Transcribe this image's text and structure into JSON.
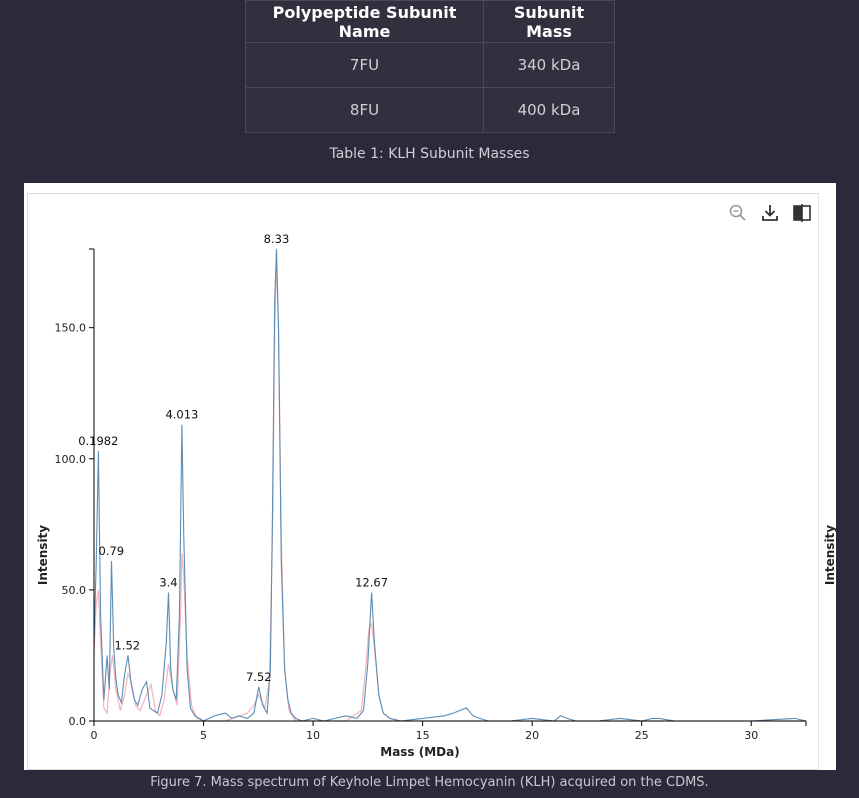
{
  "table": {
    "headers": [
      "Polypeptide Subunit Name",
      "Subunit Mass"
    ],
    "rows": [
      [
        "7FU",
        "340 kDa"
      ],
      [
        "8FU",
        "400 kDa"
      ]
    ],
    "caption": "Table 1: KLH Subunit Masses"
  },
  "toolbar": {
    "icons": [
      "zoom-icon",
      "download-icon",
      "compare-icon"
    ]
  },
  "chart_data": {
    "type": "line",
    "xlabel": "Mass (MDa)",
    "ylabel": "Intensity",
    "ylabel_right": "Intensity",
    "xlim": [
      0,
      32.5
    ],
    "ylim": [
      0,
      180
    ],
    "xticks": [
      0,
      5,
      10,
      15,
      20,
      25,
      30
    ],
    "yticks": [
      0,
      50,
      100,
      150
    ],
    "ytick_labels": [
      "0.0",
      "50.0",
      "100.0",
      "150.0"
    ],
    "grid": false,
    "colors": {
      "raw": "#5b8db5",
      "fit": "#e0877f",
      "fit_pink": "#f3a0a8"
    },
    "peak_labels": [
      {
        "x": 0.1982,
        "y": 103,
        "text": "0.1982"
      },
      {
        "x": 0.79,
        "y": 61,
        "text": "0.79"
      },
      {
        "x": 1.52,
        "y": 25,
        "text": "1.52"
      },
      {
        "x": 3.4,
        "y": 49,
        "text": "3.4"
      },
      {
        "x": 4.013,
        "y": 113,
        "text": "4.013"
      },
      {
        "x": 7.52,
        "y": 13,
        "text": "7.52"
      },
      {
        "x": 8.33,
        "y": 180,
        "text": "8.33"
      },
      {
        "x": 12.67,
        "y": 49,
        "text": "12.67"
      }
    ],
    "series": [
      {
        "role": "raw",
        "x": [
          0,
          0.1,
          0.2,
          0.3,
          0.45,
          0.6,
          0.7,
          0.8,
          0.9,
          1.0,
          1.1,
          1.25,
          1.4,
          1.55,
          1.7,
          1.85,
          2.0,
          2.2,
          2.4,
          2.55,
          2.7,
          2.9,
          3.1,
          3.3,
          3.4,
          3.5,
          3.6,
          3.75,
          3.9,
          4.013,
          4.1,
          4.25,
          4.4,
          4.6,
          4.8,
          5.0,
          5.5,
          6.0,
          6.3,
          6.6,
          7.0,
          7.3,
          7.52,
          7.7,
          7.9,
          8.05,
          8.15,
          8.25,
          8.33,
          8.42,
          8.55,
          8.7,
          8.85,
          9.0,
          9.2,
          9.5,
          10.0,
          10.5,
          11.0,
          11.5,
          12.0,
          12.3,
          12.5,
          12.67,
          12.8,
          13.0,
          13.2,
          13.5,
          14.0,
          15.0,
          16.0,
          16.4,
          16.7,
          17.0,
          17.3,
          17.6,
          18.0,
          19.0,
          20.0,
          21.0,
          21.3,
          21.6,
          22.0,
          23.0,
          24.0,
          25.0,
          25.5,
          25.8,
          26.5,
          28.0,
          30.0,
          32.0,
          32.5
        ],
        "y": [
          30,
          60,
          103,
          40,
          8,
          25,
          12,
          61,
          28,
          16,
          10,
          7,
          18,
          25,
          14,
          8,
          6,
          12,
          15,
          5,
          4,
          3,
          10,
          30,
          49,
          20,
          12,
          8,
          40,
          113,
          70,
          20,
          5,
          2,
          1,
          0,
          2,
          3,
          1,
          2,
          1,
          3,
          13,
          6,
          3,
          20,
          80,
          160,
          180,
          150,
          60,
          20,
          8,
          3,
          1,
          0,
          1,
          0,
          1,
          2,
          1,
          4,
          22,
          49,
          30,
          10,
          3,
          1,
          0,
          1,
          2,
          3,
          4,
          5,
          2,
          1,
          0,
          0,
          1,
          0,
          2,
          1,
          0,
          0,
          1,
          0,
          1,
          1,
          0,
          0,
          0,
          1,
          0
        ]
      },
      {
        "role": "fit",
        "x": [
          0,
          0.1,
          0.2,
          0.3,
          0.45,
          0.6,
          0.75,
          0.85,
          1.0,
          1.2,
          1.4,
          1.55,
          1.7,
          1.9,
          2.1,
          2.4,
          2.6,
          2.8,
          3.0,
          3.2,
          3.4,
          3.6,
          3.8,
          3.95,
          4.013,
          4.1,
          4.25,
          4.45,
          4.7,
          5.0,
          6.0,
          7.0,
          7.3,
          7.52,
          7.8,
          8.0,
          8.15,
          8.25,
          8.33,
          8.42,
          8.55,
          8.7,
          8.9,
          9.2,
          10.0,
          11.5,
          12.2,
          12.4,
          12.55,
          12.67,
          12.8,
          13.0,
          13.2,
          13.5,
          14.0,
          32.5
        ],
        "y": [
          25,
          45,
          50,
          30,
          5,
          3,
          20,
          25,
          12,
          4,
          10,
          18,
          15,
          6,
          4,
          10,
          14,
          4,
          2,
          8,
          22,
          12,
          6,
          40,
          64,
          55,
          25,
          6,
          1,
          0,
          0,
          3,
          6,
          10,
          5,
          15,
          70,
          150,
          176,
          150,
          70,
          20,
          4,
          0,
          0,
          0,
          4,
          20,
          35,
          37,
          28,
          10,
          3,
          1,
          0,
          0
        ]
      }
    ]
  },
  "figure_caption": "Figure 7. Mass spectrum of Keyhole Limpet Hemocyanin (KLH) acquired on the CDMS."
}
